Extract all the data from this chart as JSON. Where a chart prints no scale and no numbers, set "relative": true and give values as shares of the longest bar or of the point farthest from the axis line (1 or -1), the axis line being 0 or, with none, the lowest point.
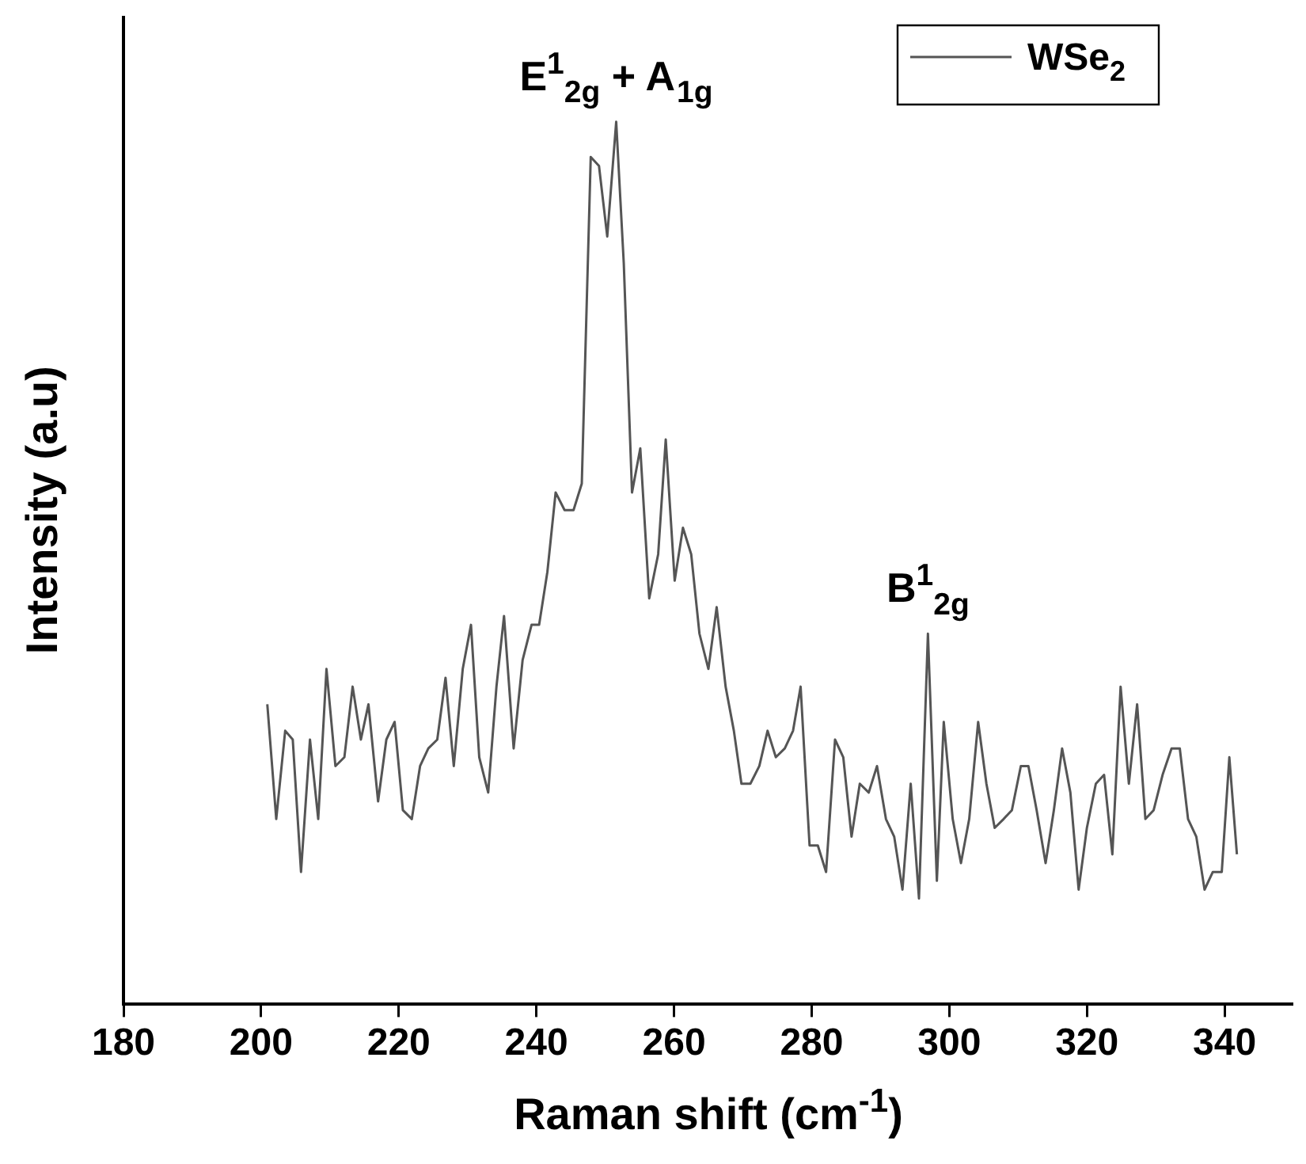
{
  "chart_data": {
    "type": "line",
    "relative": true,
    "xlabel": "Raman shift (cm$^{-1}$)",
    "ylabel": "Intensity (a.u)",
    "xlim": [
      180,
      350
    ],
    "xticks": [
      180,
      200,
      220,
      240,
      260,
      280,
      300,
      320,
      340
    ],
    "legend": "top right",
    "grid": false,
    "marker": "none",
    "line_style": "solid",
    "annotations": [
      {
        "text": "E$^{1}$$_{2g}$ + A$_{1g}$",
        "x": 251.6,
        "y": 1
      },
      {
        "text": "B$^{1}$$_{2g}$",
        "x": 296.9,
        "y": 0.42
      }
    ],
    "series": [
      {
        "name": "WSe$_{2}$",
        "color": "#555555",
        "x": [
          200.9,
          202.2,
          203.5,
          204.6,
          205.8,
          207.1,
          208.3,
          209.5,
          210.8,
          212.1,
          213.3,
          214.5,
          215.6,
          217.0,
          218.2,
          219.4,
          220.6,
          221.9,
          223.1,
          224.3,
          225.6,
          226.8,
          228.0,
          229.3,
          230.5,
          231.7,
          233.0,
          234.2,
          235.3,
          236.7,
          238.0,
          239.3,
          240.4,
          241.6,
          242.8,
          244.1,
          245.4,
          246.6,
          247.9,
          249.1,
          250.3,
          251.6,
          252.7,
          253.9,
          255.1,
          256.4,
          257.7,
          258.8,
          260.1,
          261.3,
          262.5,
          263.7,
          265.0,
          266.2,
          267.5,
          268.7,
          269.8,
          271.1,
          272.4,
          273.6,
          274.8,
          276.1,
          277.3,
          278.4,
          279.7,
          280.9,
          282.1,
          283.4,
          284.6,
          285.8,
          287.0,
          288.3,
          289.5,
          290.8,
          292.0,
          293.2,
          294.4,
          295.6,
          296.9,
          298.2,
          299.2,
          300.5,
          301.7,
          302.9,
          304.2,
          305.4,
          306.6,
          307.9,
          309.1,
          310.4,
          311.5,
          312.7,
          314.0,
          315.2,
          316.4,
          317.6,
          318.8,
          320.0,
          321.3,
          322.5,
          323.7,
          324.9,
          326.1,
          327.3,
          328.5,
          329.7,
          331.0,
          332.3,
          333.5,
          334.7,
          335.9,
          337.1,
          338.3,
          339.6,
          340.7,
          341.8
        ],
        "values": [
          0.34,
          0.21,
          0.31,
          0.3,
          0.15,
          0.3,
          0.21,
          0.38,
          0.27,
          0.28,
          0.36,
          0.3,
          0.34,
          0.23,
          0.3,
          0.32,
          0.22,
          0.21,
          0.27,
          0.29,
          0.3,
          0.37,
          0.27,
          0.38,
          0.43,
          0.28,
          0.24,
          0.36,
          0.44,
          0.29,
          0.39,
          0.43,
          0.43,
          0.49,
          0.58,
          0.56,
          0.56,
          0.59,
          0.96,
          0.95,
          0.87,
          1.0,
          0.84,
          0.58,
          0.63,
          0.46,
          0.51,
          0.64,
          0.48,
          0.54,
          0.51,
          0.42,
          0.38,
          0.45,
          0.36,
          0.31,
          0.25,
          0.25,
          0.27,
          0.31,
          0.28,
          0.29,
          0.31,
          0.36,
          0.18,
          0.18,
          0.15,
          0.3,
          0.28,
          0.19,
          0.25,
          0.24,
          0.27,
          0.21,
          0.19,
          0.13,
          0.25,
          0.12,
          0.42,
          0.14,
          0.32,
          0.21,
          0.16,
          0.21,
          0.32,
          0.25,
          0.2,
          0.21,
          0.22,
          0.27,
          0.27,
          0.22,
          0.16,
          0.22,
          0.29,
          0.24,
          0.13,
          0.2,
          0.25,
          0.26,
          0.17,
          0.36,
          0.25,
          0.34,
          0.21,
          0.22,
          0.26,
          0.29,
          0.29,
          0.21,
          0.19,
          0.13,
          0.15,
          0.15,
          0.28,
          0.17
        ]
      }
    ]
  }
}
